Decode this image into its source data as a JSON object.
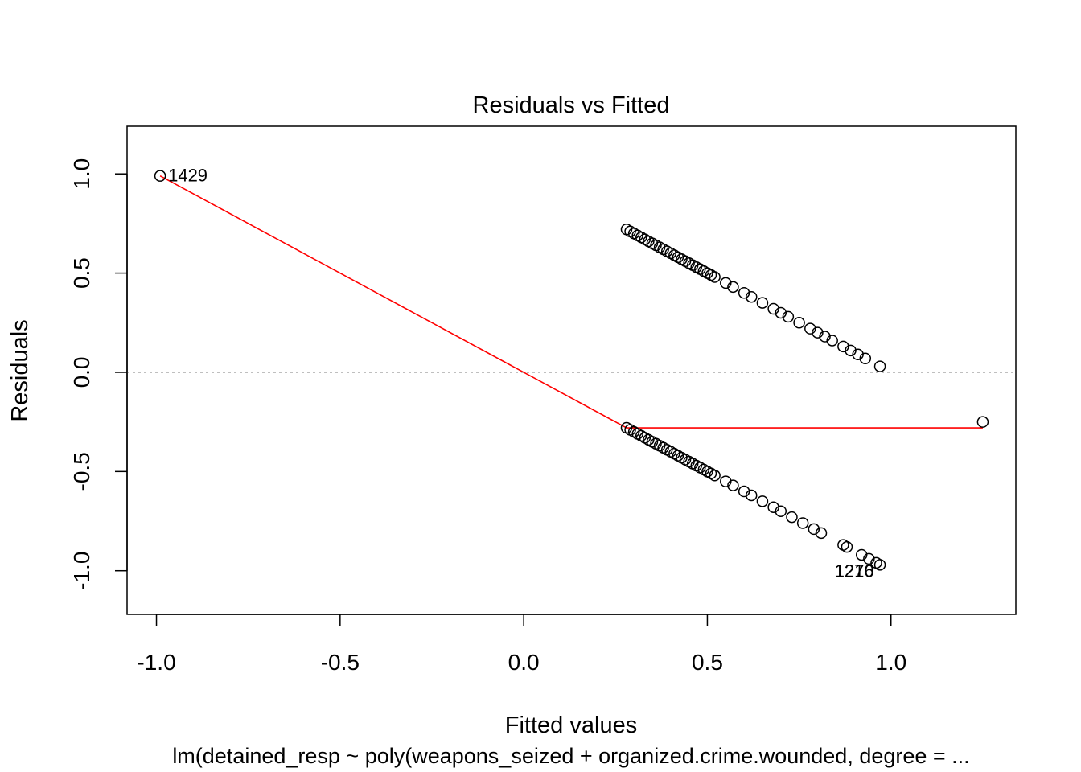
{
  "chart_data": {
    "type": "scatter",
    "title": "Residuals vs Fitted",
    "xlabel": "Fitted values",
    "ylabel": "Residuals",
    "caption": "lm(detained_resp ~ poly(weapons_seized + organized.crime.wounded, degree =  ...",
    "xlim": [
      -1.08,
      1.34
    ],
    "ylim": [
      -1.22,
      1.24
    ],
    "x_ticks": [
      -1.0,
      -0.5,
      0.0,
      0.5,
      1.0
    ],
    "x_tick_labels": [
      "-1.0",
      "-0.5",
      "0.0",
      "0.5",
      "1.0"
    ],
    "y_ticks": [
      -1.0,
      -0.5,
      0.0,
      0.5,
      1.0
    ],
    "y_tick_labels": [
      "-1.0",
      "-0.5",
      "0.0",
      "0.5",
      "1.0"
    ],
    "reference_line": {
      "y": 0,
      "style": "dotted",
      "color": "#aaaaaa"
    },
    "series": [
      {
        "points": [
          [
            -0.99,
            0.99
          ],
          [
            0.28,
            0.72
          ],
          [
            0.29,
            0.71
          ],
          [
            0.3,
            0.7
          ],
          [
            0.31,
            0.69
          ],
          [
            0.32,
            0.68
          ],
          [
            0.33,
            0.67
          ],
          [
            0.34,
            0.66
          ],
          [
            0.35,
            0.65
          ],
          [
            0.36,
            0.64
          ],
          [
            0.37,
            0.63
          ],
          [
            0.38,
            0.62
          ],
          [
            0.39,
            0.61
          ],
          [
            0.4,
            0.6
          ],
          [
            0.41,
            0.59
          ],
          [
            0.42,
            0.58
          ],
          [
            0.43,
            0.57
          ],
          [
            0.44,
            0.56
          ],
          [
            0.45,
            0.55
          ],
          [
            0.46,
            0.54
          ],
          [
            0.47,
            0.53
          ],
          [
            0.48,
            0.52
          ],
          [
            0.49,
            0.51
          ],
          [
            0.5,
            0.5
          ],
          [
            0.51,
            0.49
          ],
          [
            0.52,
            0.48
          ],
          [
            0.55,
            0.45
          ],
          [
            0.57,
            0.43
          ],
          [
            0.6,
            0.4
          ],
          [
            0.62,
            0.38
          ],
          [
            0.65,
            0.35
          ],
          [
            0.68,
            0.32
          ],
          [
            0.7,
            0.3
          ],
          [
            0.72,
            0.28
          ],
          [
            0.75,
            0.25
          ],
          [
            0.78,
            0.22
          ],
          [
            0.8,
            0.2
          ],
          [
            0.82,
            0.18
          ],
          [
            0.84,
            0.16
          ],
          [
            0.87,
            0.13
          ],
          [
            0.89,
            0.11
          ],
          [
            0.91,
            0.09
          ],
          [
            0.93,
            0.07
          ],
          [
            0.97,
            0.03
          ],
          [
            0.28,
            -0.28
          ],
          [
            0.29,
            -0.29
          ],
          [
            0.3,
            -0.3
          ],
          [
            0.31,
            -0.31
          ],
          [
            0.32,
            -0.32
          ],
          [
            0.33,
            -0.33
          ],
          [
            0.34,
            -0.34
          ],
          [
            0.35,
            -0.35
          ],
          [
            0.36,
            -0.36
          ],
          [
            0.37,
            -0.37
          ],
          [
            0.38,
            -0.38
          ],
          [
            0.39,
            -0.39
          ],
          [
            0.4,
            -0.4
          ],
          [
            0.41,
            -0.41
          ],
          [
            0.42,
            -0.42
          ],
          [
            0.43,
            -0.43
          ],
          [
            0.44,
            -0.44
          ],
          [
            0.45,
            -0.45
          ],
          [
            0.46,
            -0.46
          ],
          [
            0.47,
            -0.47
          ],
          [
            0.48,
            -0.48
          ],
          [
            0.49,
            -0.49
          ],
          [
            0.5,
            -0.5
          ],
          [
            0.51,
            -0.51
          ],
          [
            0.52,
            -0.52
          ],
          [
            0.55,
            -0.55
          ],
          [
            0.57,
            -0.57
          ],
          [
            0.6,
            -0.6
          ],
          [
            0.62,
            -0.62
          ],
          [
            0.65,
            -0.65
          ],
          [
            0.68,
            -0.68
          ],
          [
            0.7,
            -0.7
          ],
          [
            0.73,
            -0.73
          ],
          [
            0.76,
            -0.76
          ],
          [
            0.79,
            -0.79
          ],
          [
            0.81,
            -0.81
          ],
          [
            0.87,
            -0.87
          ],
          [
            0.88,
            -0.88
          ],
          [
            0.92,
            -0.92
          ],
          [
            0.94,
            -0.94
          ],
          [
            0.96,
            -0.96
          ],
          [
            0.97,
            -0.97
          ],
          [
            1.25,
            -0.25
          ]
        ]
      }
    ],
    "smoother": {
      "color": "#ff0000",
      "points": [
        [
          -0.99,
          0.99
        ],
        [
          0.28,
          -0.28
        ],
        [
          1.25,
          -0.28
        ]
      ]
    },
    "point_labels": [
      {
        "text": "1429",
        "x": -0.99,
        "y": 0.99,
        "side": "right"
      },
      {
        "text": "1270",
        "x": 0.9,
        "y": -1.0,
        "side": "below"
      },
      {
        "text": "1216",
        "x": 0.9,
        "y": -1.0,
        "side": "below"
      }
    ]
  }
}
